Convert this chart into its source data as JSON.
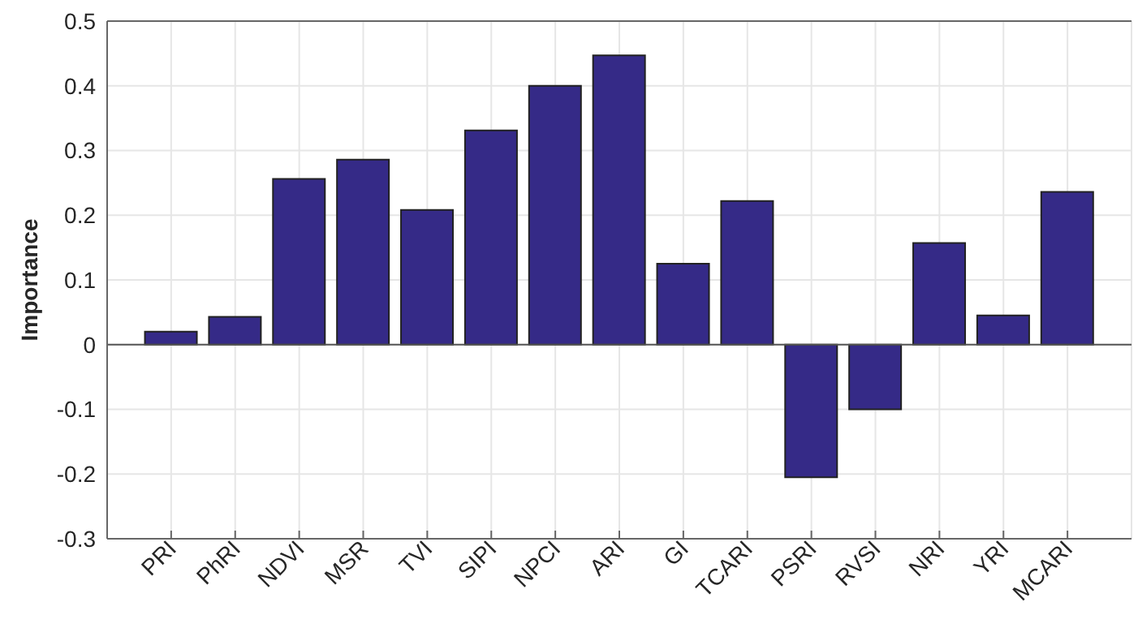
{
  "chart_data": {
    "type": "bar",
    "ylabel": "Importance",
    "categories": [
      "PRI",
      "PhRI",
      "NDVI",
      "MSR",
      "TVI",
      "SIPI",
      "NPCI",
      "ARI",
      "GI",
      "TCARI",
      "PSRI",
      "RVSI",
      "NRI",
      "YRI",
      "MCARI"
    ],
    "values": [
      0.02,
      0.043,
      0.256,
      0.286,
      0.208,
      0.331,
      0.4,
      0.447,
      0.125,
      0.222,
      -0.205,
      -0.1,
      0.157,
      0.045,
      0.236
    ],
    "color": "#352a87",
    "ylim": [
      -0.3,
      0.5
    ],
    "yticks": [
      -0.3,
      -0.2,
      -0.1,
      0,
      0.1,
      0.2,
      0.3,
      0.4,
      0.5
    ],
    "grid": true
  }
}
